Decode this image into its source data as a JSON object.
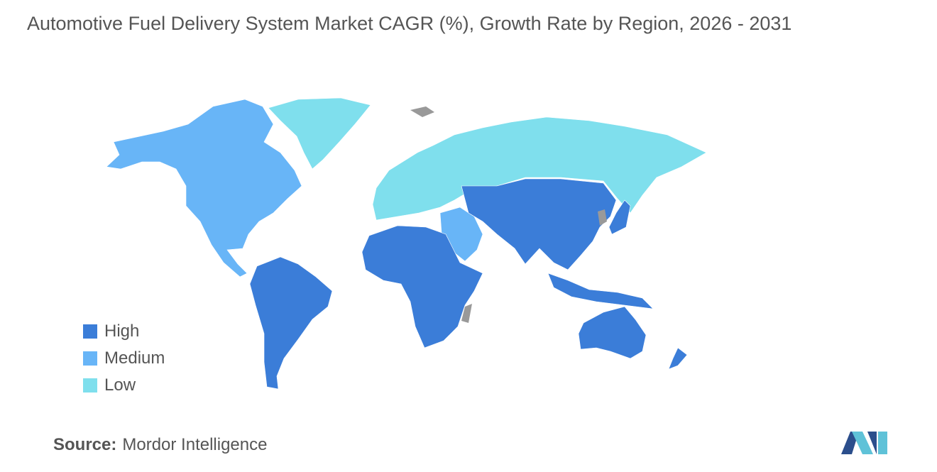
{
  "title": "Automotive Fuel Delivery System Market CAGR (%), Growth Rate by Region, 2026 - 2031",
  "legend": [
    {
      "label": "High",
      "color": "#3b7dd8"
    },
    {
      "label": "Medium",
      "color": "#68b5f7"
    },
    {
      "label": "Low",
      "color": "#7fdfed"
    }
  ],
  "source": {
    "label": "Source:",
    "name": "Mordor Intelligence"
  }
}
